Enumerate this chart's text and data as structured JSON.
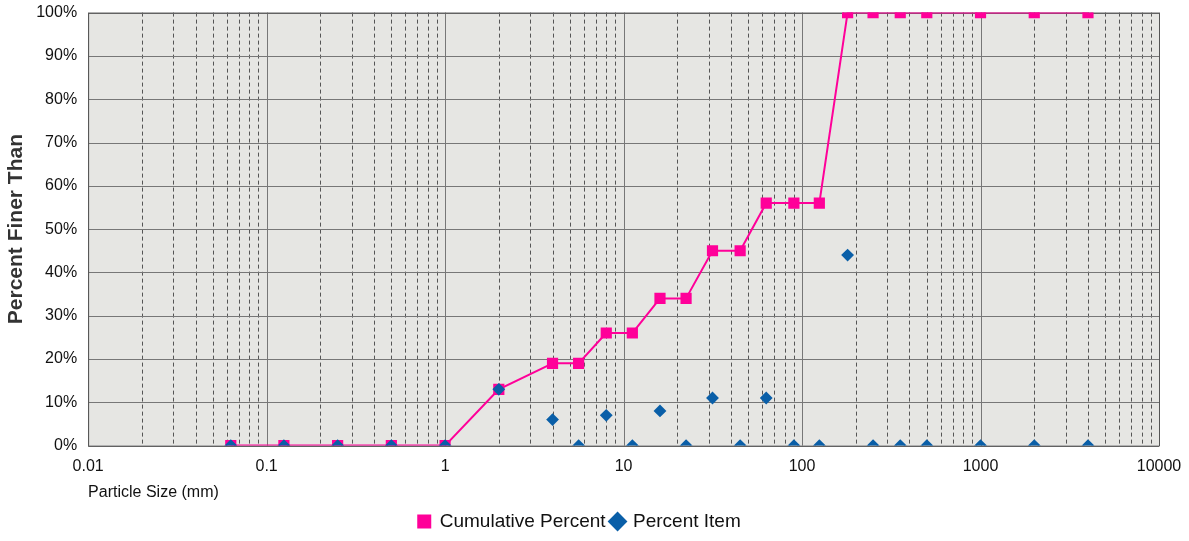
{
  "chart_data": {
    "type": "line",
    "xlabel": "Particle Size (mm)",
    "ylabel": "Percent Finer Than",
    "log": "x",
    "grid": true,
    "legend": "bottom",
    "xlim": [
      0.01,
      10000
    ],
    "xticks": [
      0.01,
      {
        "value": 0.02,
        "label": null
      },
      {
        "value": 0.03,
        "label": null
      },
      {
        "value": 0.04,
        "label": null
      },
      {
        "value": 0.05,
        "label": null
      },
      {
        "value": 0.06,
        "label": null
      },
      {
        "value": 0.07,
        "label": null
      },
      {
        "value": 0.08,
        "label": null
      },
      {
        "value": 0.09,
        "label": null
      },
      0.1,
      {
        "value": 0.2,
        "label": null
      },
      {
        "value": 0.3,
        "label": null
      },
      {
        "value": 0.4,
        "label": null
      },
      {
        "value": 0.5,
        "label": null
      },
      {
        "value": 0.6,
        "label": null
      },
      {
        "value": 0.7,
        "label": null
      },
      {
        "value": 0.8,
        "label": null
      },
      {
        "value": 0.9,
        "label": null
      },
      1,
      {
        "value": 2,
        "label": null
      },
      {
        "value": 3,
        "label": null
      },
      {
        "value": 4,
        "label": null
      },
      {
        "value": 5,
        "label": null
      },
      {
        "value": 6,
        "label": null
      },
      {
        "value": 7,
        "label": null
      },
      {
        "value": 8,
        "label": null
      },
      {
        "value": 9,
        "label": null
      },
      10,
      {
        "value": 20,
        "label": null
      },
      {
        "value": 30,
        "label": null
      },
      {
        "value": 40,
        "label": null
      },
      {
        "value": 50,
        "label": null
      },
      {
        "value": 60,
        "label": null
      },
      {
        "value": 70,
        "label": null
      },
      {
        "value": 80,
        "label": null
      },
      {
        "value": 90,
        "label": null
      },
      100,
      {
        "value": 200,
        "label": null
      },
      {
        "value": 300,
        "label": null
      },
      {
        "value": 400,
        "label": null
      },
      {
        "value": 500,
        "label": null
      },
      {
        "value": 600,
        "label": null
      },
      {
        "value": 700,
        "label": null
      },
      {
        "value": 800,
        "label": null
      },
      {
        "value": 900,
        "label": null
      },
      1000,
      {
        "value": 2000,
        "label": null
      },
      {
        "value": 3000,
        "label": null
      },
      {
        "value": 4000,
        "label": null
      },
      {
        "value": 5000,
        "label": null
      },
      {
        "value": 6000,
        "label": null
      },
      {
        "value": 7000,
        "label": null
      },
      {
        "value": 8000,
        "label": null
      },
      {
        "value": 9000,
        "label": null
      },
      10000
    ],
    "ylim": [
      0,
      100
    ],
    "yticks": [
      {
        "value": 0,
        "label": "0%"
      },
      {
        "value": 10,
        "label": "10%"
      },
      {
        "value": 20,
        "label": "20%"
      },
      {
        "value": 30,
        "label": "30%"
      },
      {
        "value": 40,
        "label": "40%"
      },
      {
        "value": 50,
        "label": "50%"
      },
      {
        "value": 60,
        "label": "60%"
      },
      {
        "value": 70,
        "label": "70%"
      },
      {
        "value": 80,
        "label": "80%"
      },
      {
        "value": 90,
        "label": "90%"
      },
      {
        "value": 100,
        "label": "100%"
      }
    ],
    "x": [
      0.063,
      0.125,
      0.25,
      0.5,
      1,
      2,
      4,
      5.6,
      8,
      11.2,
      16,
      22.4,
      31.5,
      45,
      63,
      90,
      125,
      180,
      250,
      355,
      500,
      1000,
      2000,
      4000
    ],
    "series": [
      {
        "name": "Cumulative Percent",
        "type": "line",
        "color": "#ff0099",
        "marker": "square",
        "line_style": "solid",
        "values": [
          0,
          0,
          0,
          0,
          0,
          13,
          19,
          19,
          26,
          26,
          34,
          34,
          45,
          45,
          56,
          56,
          56,
          100,
          100,
          100,
          100,
          100,
          100,
          100
        ]
      },
      {
        "name": "Percent Item",
        "type": "scatter",
        "color": "#0a5fa8",
        "marker": "diamond",
        "values": [
          0,
          0,
          0,
          0,
          0,
          13,
          6,
          0,
          7,
          0,
          8,
          0,
          11,
          0,
          11,
          0,
          0,
          44,
          0,
          0,
          0,
          0,
          0,
          0
        ]
      }
    ]
  }
}
